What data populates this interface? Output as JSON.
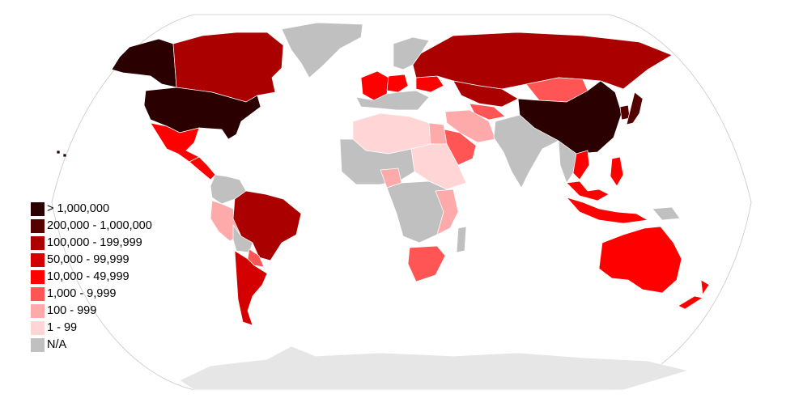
{
  "colors": {
    "ocean": "#ffffff",
    "outline": "#c8c8c8",
    "border": "#ffffff",
    "antarctica": "#e6e6e6"
  },
  "legend": {
    "placement": "lower-left",
    "items": [
      {
        "label": "> 1,000,000",
        "color": "#2b0000"
      },
      {
        "label": "200,000 - 1,000,000",
        "color": "#550000"
      },
      {
        "label": "100,000 - 199,999",
        "color": "#aa0000"
      },
      {
        "label": "50,000 - 99,999",
        "color": "#d40000"
      },
      {
        "label": "10,000 - 49,999",
        "color": "#ff0000"
      },
      {
        "label": "100 - 999",
        "color": "#ffaaaa",
        "_order": 6
      },
      {
        "label": "1 - 99",
        "color": "#ffd5d5",
        "_order": 7
      },
      {
        "label": "N/A",
        "color": "#c0c0c0",
        "_order": 8
      }
    ],
    "mid_item": {
      "label": "1,000 - 9,999",
      "color": "#ff5555"
    }
  },
  "regions": [
    {
      "name": "United States",
      "bin": "> 1,000,000"
    },
    {
      "name": "Alaska",
      "bin": "> 1,000,000"
    },
    {
      "name": "China",
      "bin": "> 1,000,000"
    },
    {
      "name": "Japan",
      "bin": "200,000 - 1,000,000"
    },
    {
      "name": "South Korea",
      "bin": "200,000 - 1,000,000"
    },
    {
      "name": "Canada",
      "bin": "100,000 - 199,999"
    },
    {
      "name": "Russia",
      "bin": "100,000 - 199,999"
    },
    {
      "name": "Brazil",
      "bin": "100,000 - 199,999"
    },
    {
      "name": "Kazakhstan",
      "bin": "100,000 - 199,999"
    },
    {
      "name": "Argentina",
      "bin": "50,000 - 99,999"
    },
    {
      "name": "Australia",
      "bin": "10,000 - 49,999"
    },
    {
      "name": "New Zealand",
      "bin": "10,000 - 49,999"
    },
    {
      "name": "Mexico",
      "bin": "10,000 - 49,999"
    },
    {
      "name": "France",
      "bin": "10,000 - 49,999"
    },
    {
      "name": "Germany",
      "bin": "10,000 - 49,999"
    },
    {
      "name": "Ukraine",
      "bin": "10,000 - 49,999"
    },
    {
      "name": "Indonesia",
      "bin": "10,000 - 49,999"
    },
    {
      "name": "Vietnam",
      "bin": "10,000 - 49,999"
    },
    {
      "name": "Philippines",
      "bin": "10,000 - 49,999"
    },
    {
      "name": "Malaysia",
      "bin": "10,000 - 49,999"
    },
    {
      "name": "Central America",
      "bin": "10,000 - 49,999"
    },
    {
      "name": "Mongolia",
      "bin": "1,000 - 9,999"
    },
    {
      "name": "Saudi Arabia",
      "bin": "1,000 - 9,999"
    },
    {
      "name": "South Africa",
      "bin": "1,000 - 9,999"
    },
    {
      "name": "Paraguay",
      "bin": "1,000 - 9,999"
    },
    {
      "name": "Uzbekistan",
      "bin": "1,000 - 9,999"
    },
    {
      "name": "Peru",
      "bin": "100 - 999"
    },
    {
      "name": "Egypt",
      "bin": "100 - 999"
    },
    {
      "name": "Nigeria",
      "bin": "100 - 999"
    },
    {
      "name": "Tanzania",
      "bin": "100 - 999"
    },
    {
      "name": "Iran",
      "bin": "100 - 999"
    },
    {
      "name": "Algeria",
      "bin": "1 - 99"
    },
    {
      "name": "Libya",
      "bin": "1 - 99"
    },
    {
      "name": "Sudan",
      "bin": "1 - 99"
    },
    {
      "name": "Ethiopia",
      "bin": "1 - 99"
    },
    {
      "name": "Greenland",
      "bin": "N/A"
    },
    {
      "name": "India",
      "bin": "N/A"
    },
    {
      "name": "Colombia",
      "bin": "N/A"
    },
    {
      "name": "Bolivia",
      "bin": "N/A"
    },
    {
      "name": "DR Congo",
      "bin": "N/A"
    },
    {
      "name": "Namibia",
      "bin": "N/A"
    },
    {
      "name": "Scandinavia",
      "bin": "N/A"
    },
    {
      "name": "Southern Europe",
      "bin": "N/A"
    },
    {
      "name": "Madagascar",
      "bin": "N/A"
    },
    {
      "name": "West Africa",
      "bin": "N/A"
    },
    {
      "name": "Papua New Guinea",
      "bin": "N/A"
    }
  ]
}
